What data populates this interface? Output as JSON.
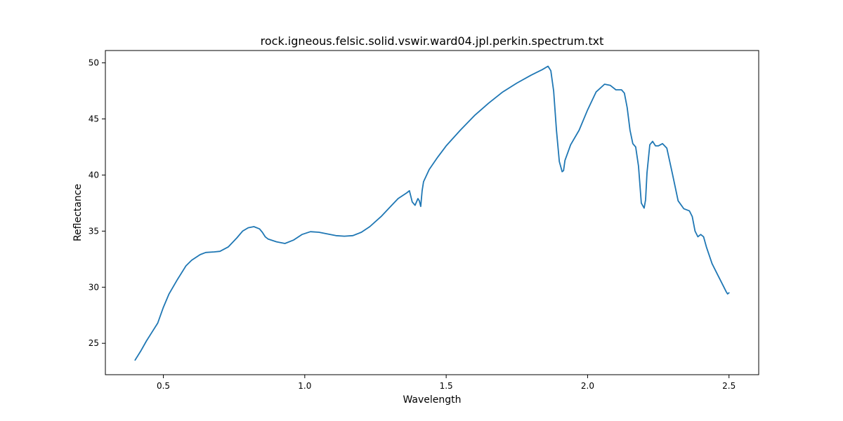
{
  "chart_data": {
    "type": "line",
    "title": "rock.igneous.felsic.solid.vswir.ward04.jpl.perkin.spectrum.txt",
    "xlabel": "Wavelength",
    "ylabel": "Reflectance",
    "xlim": [
      0.295,
      2.605
    ],
    "ylim": [
      22.2,
      51.1
    ],
    "xticks": [
      0.5,
      1.0,
      1.5,
      2.0,
      2.5
    ],
    "xtick_labels": [
      "0.5",
      "1.0",
      "1.5",
      "2.0",
      "2.5"
    ],
    "yticks": [
      25,
      30,
      35,
      40,
      45,
      50
    ],
    "ytick_labels": [
      "25",
      "30",
      "35",
      "40",
      "45",
      "50"
    ],
    "grid": false,
    "line_color": "#1f77b4",
    "series": [
      {
        "x": [
          0.4,
          0.42,
          0.44,
          0.46,
          0.48,
          0.5,
          0.52,
          0.55,
          0.58,
          0.6,
          0.63,
          0.65,
          0.68,
          0.7,
          0.73,
          0.76,
          0.78,
          0.8,
          0.82,
          0.84,
          0.85,
          0.86,
          0.87,
          0.9,
          0.93,
          0.96,
          0.99,
          1.02,
          1.05,
          1.08,
          1.11,
          1.14,
          1.17,
          1.2,
          1.23,
          1.27,
          1.3,
          1.33,
          1.36,
          1.37,
          1.38,
          1.39,
          1.4,
          1.405,
          1.41,
          1.415,
          1.42,
          1.44,
          1.47,
          1.5,
          1.55,
          1.6,
          1.65,
          1.7,
          1.75,
          1.8,
          1.84,
          1.86,
          1.87,
          1.88,
          1.89,
          1.9,
          1.91,
          1.915,
          1.92,
          1.94,
          1.97,
          2.0,
          2.03,
          2.06,
          2.08,
          2.1,
          2.12,
          2.13,
          2.14,
          2.15,
          2.16,
          2.17,
          2.18,
          2.19,
          2.2,
          2.205,
          2.21,
          2.22,
          2.23,
          2.24,
          2.25,
          2.265,
          2.28,
          2.3,
          2.32,
          2.34,
          2.36,
          2.37,
          2.38,
          2.39,
          2.4,
          2.41,
          2.42,
          2.44,
          2.46,
          2.48,
          2.49,
          2.495,
          2.5
        ],
        "y": [
          23.5,
          24.3,
          25.2,
          26.0,
          26.8,
          28.2,
          29.4,
          30.7,
          31.9,
          32.4,
          32.9,
          33.1,
          33.15,
          33.2,
          33.6,
          34.4,
          35.0,
          35.3,
          35.4,
          35.2,
          34.9,
          34.5,
          34.3,
          34.05,
          33.9,
          34.2,
          34.7,
          34.95,
          34.9,
          34.75,
          34.6,
          34.55,
          34.6,
          34.9,
          35.4,
          36.3,
          37.1,
          37.9,
          38.4,
          38.6,
          37.6,
          37.3,
          37.9,
          37.7,
          37.2,
          38.6,
          39.4,
          40.5,
          41.6,
          42.6,
          44.0,
          45.3,
          46.4,
          47.4,
          48.2,
          48.9,
          49.4,
          49.7,
          49.3,
          47.5,
          44.0,
          41.2,
          40.3,
          40.4,
          41.3,
          42.7,
          44.0,
          45.8,
          47.4,
          48.1,
          48.0,
          47.6,
          47.6,
          47.3,
          46.0,
          44.0,
          42.8,
          42.5,
          40.8,
          37.5,
          37.05,
          37.8,
          40.2,
          42.7,
          43.0,
          42.6,
          42.6,
          42.8,
          42.4,
          40.1,
          37.7,
          37.0,
          36.8,
          36.3,
          35.0,
          34.5,
          34.7,
          34.5,
          33.6,
          32.1,
          31.1,
          30.1,
          29.6,
          29.4,
          29.5
        ]
      }
    ]
  }
}
